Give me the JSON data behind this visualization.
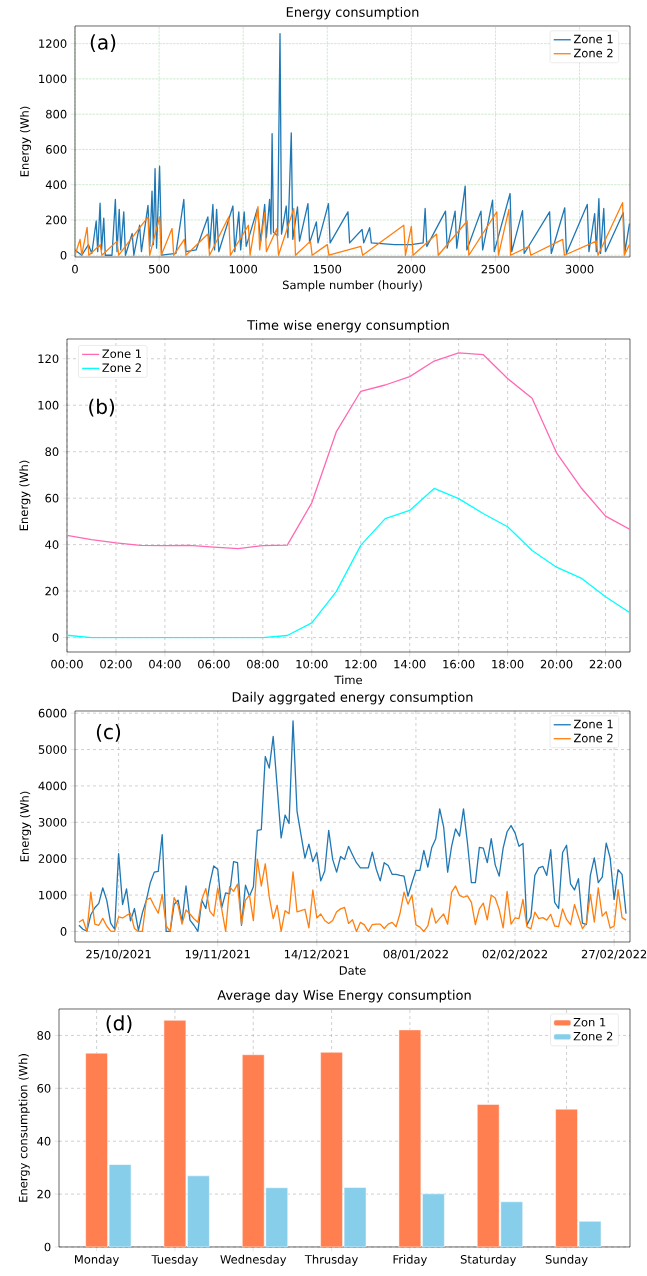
{
  "chart_data": [
    {
      "type": "line",
      "title": "Energy consumption",
      "xlabel": "Sample number (hourly)",
      "ylabel": "Energy (Wh)",
      "xlim": [
        0,
        3300
      ],
      "ylim": [
        -10,
        1300
      ],
      "xticks": [
        0,
        500,
        1000,
        1500,
        2000,
        2500,
        3000
      ],
      "yticks": [
        0,
        200,
        400,
        600,
        800,
        1000,
        1200
      ],
      "grid": true,
      "legend": "top right",
      "annotations": [
        "(a)"
      ],
      "series": [
        {
          "name": "Zone 1",
          "color": "#1f77b4",
          "x": [
            0,
            40,
            80,
            100,
            126,
            135,
            149,
            158,
            171,
            180,
            220,
            240,
            250,
            263,
            272,
            290,
            300,
            340,
            350,
            384,
            395,
            434,
            445,
            458,
            466,
            476,
            485,
            503,
            515,
            600,
            647,
            660,
            720,
            790,
            800,
            820,
            830,
            842,
            855,
            939,
            950,
            974,
            985,
            1006,
            1018,
            1085,
            1104,
            1128,
            1138,
            1157,
            1165,
            1172,
            1180,
            1205,
            1219,
            1228,
            1256,
            1266,
            1286,
            1295,
            1323,
            1335,
            1385,
            1395,
            1435,
            1445,
            1507,
            1517,
            1623,
            1633,
            1707,
            1717,
            1752,
            1762,
            1900,
            2000,
            2070,
            2082,
            2092,
            2203,
            2213,
            2260,
            2270,
            2320,
            2330,
            2414,
            2424,
            2483,
            2493,
            2587,
            2597,
            2661,
            2671,
            2822,
            2832,
            2912,
            2922,
            3046,
            3056,
            3090,
            3100,
            3115,
            3125,
            3144,
            3154,
            3260,
            3270,
            3297
          ],
          "values": [
            30,
            0,
            60,
            10,
            194,
            20,
            295,
            30,
            210,
            0,
            0,
            316,
            20,
            260,
            30,
            246,
            0,
            123,
            0,
            170,
            20,
            283,
            50,
            364,
            60,
            491,
            40,
            505,
            0,
            10,
            316,
            20,
            30,
            217,
            40,
            288,
            30,
            260,
            20,
            279,
            20,
            246,
            30,
            246,
            50,
            265,
            80,
            288,
            100,
            316,
            120,
            690,
            130,
            110,
            1257,
            120,
            279,
            100,
            694,
            90,
            274,
            80,
            293,
            70,
            189,
            70,
            293,
            70,
            246,
            70,
            146,
            70,
            156,
            70,
            60,
            60,
            70,
            265,
            50,
            250,
            40,
            250,
            40,
            392,
            30,
            250,
            30,
            312,
            20,
            350,
            20,
            253,
            10,
            246,
            10,
            269,
            10,
            288,
            20,
            236,
            20,
            321,
            10,
            265,
            20,
            241,
            20,
            180
          ]
        },
        {
          "name": "Zone 2",
          "color": "#ff7f0e",
          "x": [
            0,
            30,
            40,
            72,
            82,
            150,
            160,
            250,
            260,
            434,
            444,
            503,
            513,
            577,
            587,
            650,
            660,
            790,
            800,
            914,
            924,
            1031,
            1041,
            1088,
            1098,
            1128,
            1138,
            1200,
            1210,
            1301,
            1311,
            1400,
            1410,
            1500,
            1510,
            1700,
            1710,
            1955,
            1965,
            2000,
            2010,
            2150,
            2160,
            2332,
            2342,
            2508,
            2518,
            2580,
            2590,
            2700,
            2710,
            2900,
            2910,
            3100,
            3110,
            3256,
            3266,
            3297
          ],
          "values": [
            0,
            90,
            0,
            158,
            0,
            60,
            0,
            80,
            0,
            217,
            0,
            217,
            0,
            151,
            0,
            90,
            0,
            120,
            0,
            217,
            0,
            170,
            0,
            276,
            30,
            241,
            20,
            150,
            0,
            265,
            0,
            80,
            0,
            60,
            0,
            50,
            0,
            170,
            0,
            163,
            0,
            120,
            0,
            194,
            0,
            246,
            0,
            260,
            0,
            50,
            0,
            90,
            0,
            80,
            0,
            298,
            0,
            60
          ]
        }
      ]
    },
    {
      "type": "line",
      "title": "Time wise energy consumption",
      "xlabel": "Time",
      "ylabel": "Energy (Wh)",
      "x": [
        0,
        1,
        2,
        3,
        4,
        5,
        6,
        7,
        8,
        9,
        10,
        11,
        12,
        13,
        14,
        15,
        16,
        17,
        18,
        19,
        20,
        21,
        22,
        23
      ],
      "xlim": [
        0,
        23
      ],
      "ylim": [
        -6.2,
        128.5
      ],
      "xticks": [
        {
          "value": 0,
          "label": "00:00"
        },
        {
          "value": 2,
          "label": "02:00"
        },
        {
          "value": 4,
          "label": "04:00"
        },
        {
          "value": 6,
          "label": "06:00"
        },
        {
          "value": 8,
          "label": "08:00"
        },
        {
          "value": 10,
          "label": "10:00"
        },
        {
          "value": 12,
          "label": "12:00"
        },
        {
          "value": 14,
          "label": "14:00"
        },
        {
          "value": 16,
          "label": "16:00"
        },
        {
          "value": 18,
          "label": "18:00"
        },
        {
          "value": 20,
          "label": "20:00"
        },
        {
          "value": 22,
          "label": "22:00"
        }
      ],
      "yticks": [
        0,
        20,
        40,
        60,
        80,
        100,
        120
      ],
      "grid": true,
      "legend": "top left",
      "annotations": [
        "(b)"
      ],
      "series": [
        {
          "name": "Zone 1",
          "color": "#ff69b4",
          "values": [
            44,
            42.2,
            40.8,
            39.7,
            39.6,
            39.7,
            38.9,
            38.3,
            39.6,
            39.8,
            58,
            88.5,
            106,
            108.7,
            112.3,
            119,
            122.5,
            121.8,
            111.5,
            103,
            79.5,
            64.5,
            52.3,
            46.5
          ]
        },
        {
          "name": "Zone 2",
          "color": "#00ffff",
          "values": [
            1,
            0,
            0,
            0,
            0,
            0,
            0,
            0,
            0,
            0.9,
            6.3,
            19.8,
            39.7,
            51.2,
            54.7,
            64.2,
            59.8,
            53.4,
            47.7,
            37.5,
            30.3,
            25.6,
            17.6,
            10.7
          ]
        }
      ]
    },
    {
      "type": "line",
      "title": "Daily aggrgated energy consumption",
      "xlabel": "Date",
      "ylabel": "Energy (Wh)",
      "xlim": [
        "2021-10-14",
        "2022-03-03"
      ],
      "ylim": [
        -290,
        6060
      ],
      "xticks": [
        {
          "value": "2021-10-25",
          "label": "25/10/2021"
        },
        {
          "value": "2021-11-19",
          "label": "19/11/2021"
        },
        {
          "value": "2021-12-14",
          "label": "14/12/2021"
        },
        {
          "value": "2022-01-08",
          "label": "08/01/2022"
        },
        {
          "value": "2022-02-02",
          "label": "02/02/2022"
        },
        {
          "value": "2022-02-27",
          "label": "27/02/2022"
        }
      ],
      "yticks": [
        0,
        1000,
        2000,
        3000,
        4000,
        5000,
        6000
      ],
      "grid": true,
      "legend": "top right",
      "annotations": [
        "(c)"
      ],
      "x": [
        "2021-10-15",
        "2021-10-16",
        "2021-10-17",
        "2021-10-18",
        "2021-10-19",
        "2021-10-20",
        "2021-10-21",
        "2021-10-22",
        "2021-10-23",
        "2021-10-24",
        "2021-10-25",
        "2021-10-26",
        "2021-10-27",
        "2021-10-28",
        "2021-10-29",
        "2021-10-30",
        "2021-10-31",
        "2021-11-01",
        "2021-11-02",
        "2021-11-03",
        "2021-11-04",
        "2021-11-05",
        "2021-11-06",
        "2021-11-07",
        "2021-11-08",
        "2021-11-09",
        "2021-11-10",
        "2021-11-11",
        "2021-11-12",
        "2021-11-13",
        "2021-11-14",
        "2021-11-15",
        "2021-11-16",
        "2021-11-17",
        "2021-11-18",
        "2021-11-19",
        "2021-11-20",
        "2021-11-21",
        "2021-11-22",
        "2021-11-23",
        "2021-11-24",
        "2021-11-25",
        "2021-11-26",
        "2021-11-27",
        "2021-11-28",
        "2021-11-29",
        "2021-11-30",
        "2021-12-01",
        "2021-12-02",
        "2021-12-03",
        "2021-12-04",
        "2021-12-05",
        "2021-12-06",
        "2021-12-07",
        "2021-12-08",
        "2021-12-09",
        "2021-12-10",
        "2021-12-11",
        "2021-12-12",
        "2021-12-13",
        "2021-12-14",
        "2021-12-15",
        "2021-12-16",
        "2021-12-17",
        "2021-12-18",
        "2021-12-19",
        "2021-12-20",
        "2021-12-21",
        "2021-12-22",
        "2021-12-23",
        "2021-12-24",
        "2021-12-25",
        "2021-12-26",
        "2021-12-27",
        "2021-12-28",
        "2021-12-29",
        "2021-12-30",
        "2021-12-31",
        "2022-01-01",
        "2022-01-02",
        "2022-01-03",
        "2022-01-04",
        "2022-01-05",
        "2022-01-06",
        "2022-01-07",
        "2022-01-08",
        "2022-01-09",
        "2022-01-10",
        "2022-01-11",
        "2022-01-12",
        "2022-01-13",
        "2022-01-14",
        "2022-01-15",
        "2022-01-16",
        "2022-01-17",
        "2022-01-18",
        "2022-01-19",
        "2022-01-20",
        "2022-01-21",
        "2022-01-22",
        "2022-01-23",
        "2022-01-24",
        "2022-01-25",
        "2022-01-26",
        "2022-01-27",
        "2022-01-28",
        "2022-01-29",
        "2022-01-30",
        "2022-01-31",
        "2022-02-01",
        "2022-02-02",
        "2022-02-03",
        "2022-02-04",
        "2022-02-05",
        "2022-02-06",
        "2022-02-07",
        "2022-02-08",
        "2022-02-09",
        "2022-02-10",
        "2022-02-11",
        "2022-02-12",
        "2022-02-13",
        "2022-02-14",
        "2022-02-15",
        "2022-02-16",
        "2022-02-17",
        "2022-02-18",
        "2022-02-19",
        "2022-02-20",
        "2022-02-21",
        "2022-02-22",
        "2022-02-23",
        "2022-02-24",
        "2022-02-25",
        "2022-02-26",
        "2022-02-27",
        "2022-02-28",
        "2022-03-01",
        "2022-03-02"
      ],
      "series": [
        {
          "name": "Zone 1",
          "color": "#1f77b4",
          "values": [
            170,
            60,
            10,
            460,
            650,
            770,
            1200,
            860,
            230,
            60,
            2140,
            740,
            1170,
            290,
            630,
            30,
            510,
            860,
            1340,
            1630,
            1650,
            2660,
            0,
            0,
            740,
            860,
            260,
            1250,
            310,
            170,
            0,
            860,
            630,
            1310,
            1800,
            1710,
            650,
            1060,
            1030,
            1920,
            1890,
            170,
            1270,
            970,
            1230,
            2780,
            2800,
            4810,
            4490,
            5360,
            3970,
            2570,
            3200,
            2970,
            5790,
            3310,
            2660,
            2020,
            2400,
            1920,
            2170,
            1390,
            1660,
            2780,
            1980,
            1630,
            2060,
            1980,
            2340,
            2110,
            1890,
            1750,
            1750,
            1750,
            2180,
            1710,
            1390,
            1890,
            1810,
            1570,
            1570,
            1540,
            1520,
            970,
            1340,
            1680,
            1680,
            2230,
            1770,
            2310,
            2550,
            3370,
            2870,
            1630,
            2340,
            2820,
            2620,
            3370,
            2430,
            1340,
            1340,
            2310,
            2290,
            1890,
            2550,
            1830,
            1520,
            2290,
            2740,
            2910,
            2710,
            2340,
            2420,
            170,
            400,
            1540,
            1750,
            1790,
            1540,
            2250,
            800,
            630,
            2170,
            2370,
            1310,
            1140,
            1450,
            230,
            190,
            1540,
            2020,
            1340,
            1490,
            2430,
            2020,
            880,
            1700,
            1570,
            490
          ]
        },
        {
          "name": "Zone 2",
          "color": "#ff7f0e",
          "values": [
            250,
            330,
            0,
            1080,
            200,
            170,
            360,
            150,
            10,
            0,
            400,
            370,
            440,
            500,
            80,
            0,
            0,
            870,
            920,
            700,
            500,
            1020,
            150,
            0,
            930,
            720,
            200,
            590,
            480,
            350,
            250,
            880,
            1180,
            560,
            420,
            1190,
            620,
            0,
            1230,
            1100,
            1300,
            200,
            860,
            1000,
            300,
            1980,
            1250,
            1860,
            950,
            350,
            720,
            0,
            570,
            490,
            1640,
            540,
            570,
            610,
            100,
            1140,
            370,
            480,
            300,
            220,
            300,
            540,
            620,
            660,
            220,
            320,
            0,
            250,
            180,
            0,
            190,
            200,
            200,
            80,
            200,
            250,
            130,
            500,
            1080,
            750,
            1000,
            180,
            120,
            0,
            150,
            640,
            230,
            360,
            480,
            200,
            1080,
            1250,
            990,
            940,
            980,
            800,
            190,
            620,
            780,
            320,
            1000,
            920,
            600,
            100,
            1100,
            200,
            370,
            350,
            880,
            130,
            70,
            530,
            350,
            380,
            310,
            470,
            150,
            130,
            620,
            330,
            190,
            740,
            400,
            80,
            220,
            1020,
            260,
            1200,
            420,
            540,
            90,
            150,
            1150,
            380,
            310
          ]
        }
      ]
    },
    {
      "type": "bar",
      "title": "Average day Wise Energy consumption",
      "ylabel": "Energy consumption (Wh)",
      "categories": [
        "Monday",
        "Tuesday",
        "Wednesday",
        "Thrusday",
        "Friday",
        "Staturday",
        "Sunday"
      ],
      "ylim": [
        0,
        90
      ],
      "yticks": [
        0,
        20,
        40,
        60,
        80
      ],
      "grid": true,
      "legend": "top right",
      "annotations": [
        "(d)"
      ],
      "series": [
        {
          "name": "Zon 1",
          "color": "#ff7f50",
          "values": [
            73.3,
            85.7,
            72.7,
            73.6,
            82.1,
            53.9,
            52.1
          ]
        },
        {
          "name": "Zone 2",
          "color": "#87ceeb",
          "values": [
            31.2,
            26.9,
            22.4,
            22.5,
            20.1,
            17.1,
            9.7
          ]
        }
      ]
    }
  ]
}
